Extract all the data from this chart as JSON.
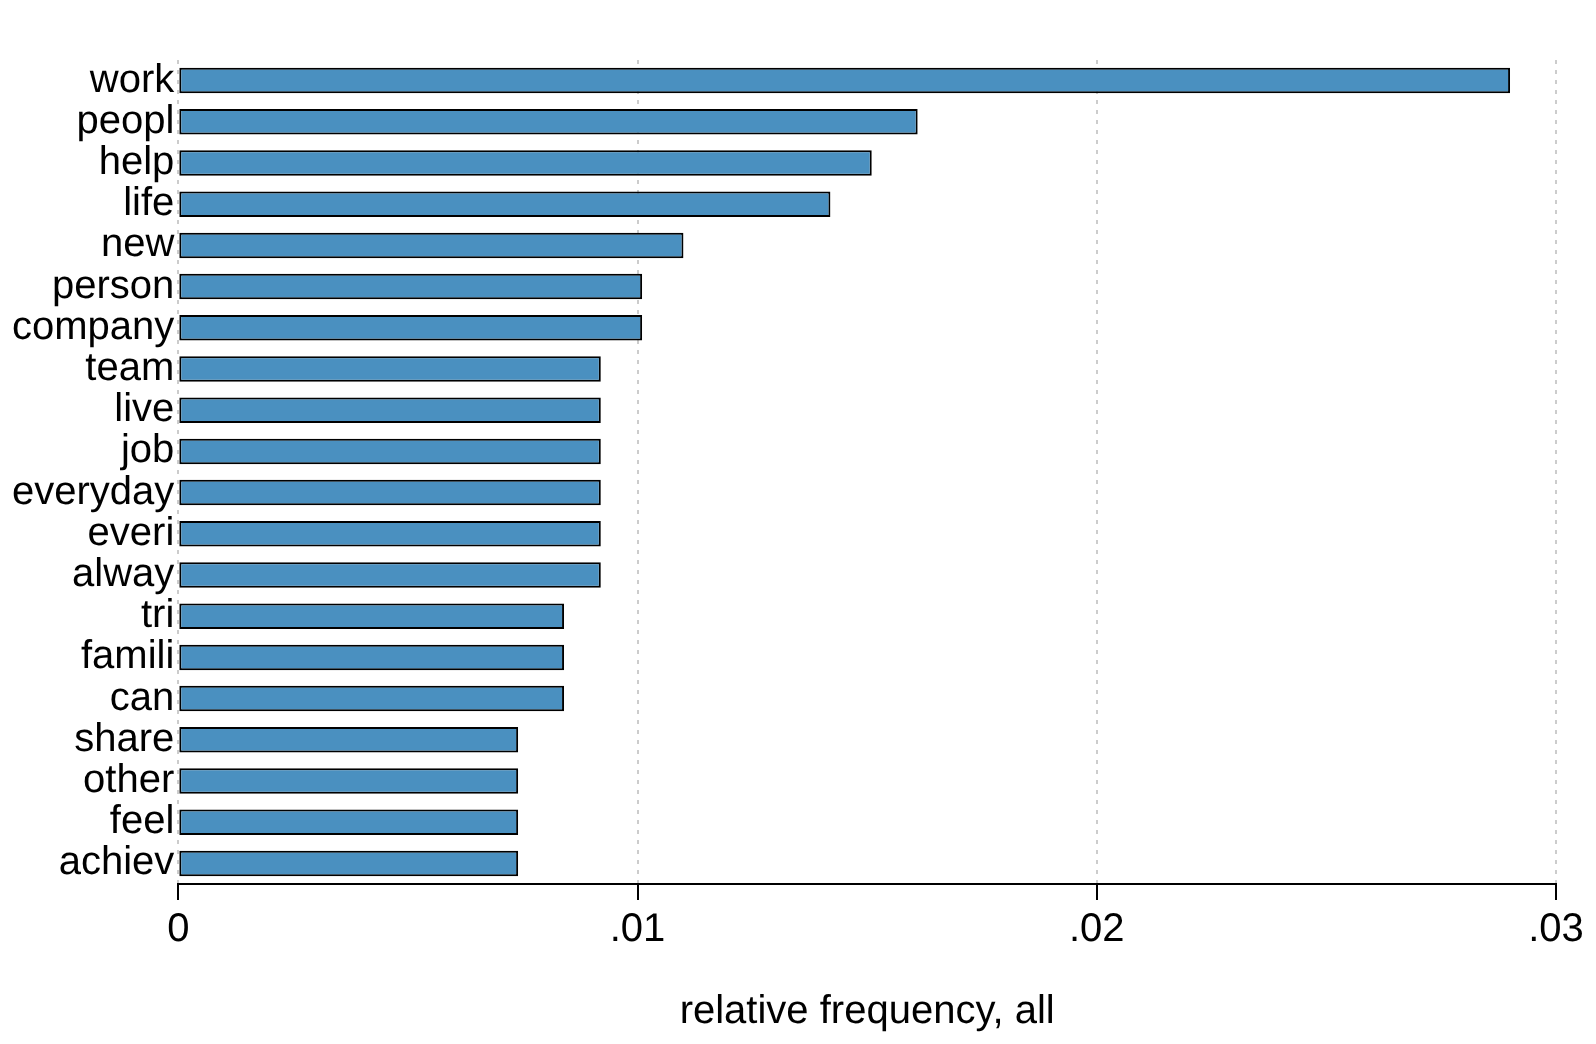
{
  "chart_data": {
    "type": "bar",
    "orientation": "horizontal",
    "xlabel": "relative frequency, all",
    "categories": [
      "work",
      "peopl",
      "help",
      "life",
      "new",
      "person",
      "company",
      "team",
      "live",
      "job",
      "everyday",
      "everi",
      "alway",
      "tri",
      "famili",
      "can",
      "share",
      "other",
      "feel",
      "achiev"
    ],
    "values": [
      0.029,
      0.0161,
      0.0151,
      0.0142,
      0.011,
      0.0101,
      0.0101,
      0.0092,
      0.0092,
      0.0092,
      0.0092,
      0.0092,
      0.0092,
      0.0084,
      0.0084,
      0.0084,
      0.0074,
      0.0074,
      0.0074,
      0.0074
    ],
    "color": "#4a90c0",
    "xlim": [
      0,
      0.03
    ],
    "xticks": [
      0,
      {
        "value": 0.01,
        "label": ".01"
      },
      {
        "value": 0.02,
        "label": ".02"
      },
      {
        "value": 0.03,
        "label": ".03"
      }
    ],
    "grid": "x",
    "legend": false
  }
}
